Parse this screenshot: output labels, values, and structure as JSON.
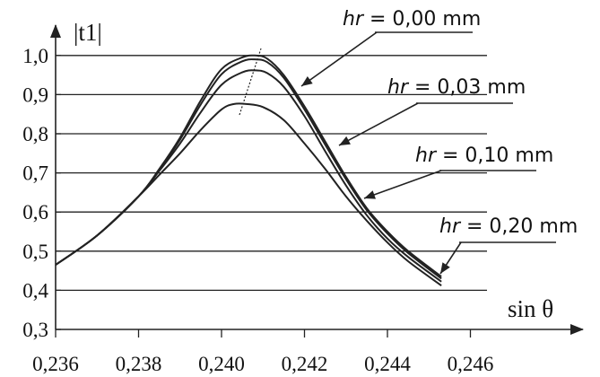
{
  "chart_data": {
    "type": "line",
    "xlabel": "sin θ",
    "ylabel": "|t1|",
    "xlim": [
      0.236,
      0.2475
    ],
    "ylim": [
      0.3,
      1.05
    ],
    "grid": "horizontal",
    "x_ticks": [
      "0,236",
      "0,238",
      "0,240",
      "0,242",
      "0,244",
      "0,246"
    ],
    "y_ticks": [
      "0,3",
      "0,4",
      "0,5",
      "0,6",
      "0,7",
      "0,8",
      "0,9",
      "1,0"
    ],
    "annotations": [
      {
        "param": "hr",
        "text": " = 0,00 mm"
      },
      {
        "param": "hr",
        "text": " = 0,03 mm"
      },
      {
        "param": "hr",
        "text": " = 0,10 mm"
      },
      {
        "param": "hr",
        "text": " = 0,20 mm"
      }
    ],
    "series": [
      {
        "name": "hr = 0,00 mm",
        "x": [
          0.236,
          0.237,
          0.238,
          0.2385,
          0.239,
          0.2395,
          0.24,
          0.2405,
          0.2408,
          0.2411,
          0.2415,
          0.242,
          0.2425,
          0.243,
          0.2435,
          0.244,
          0.2445,
          0.2453
        ],
        "y": [
          0.465,
          0.54,
          0.64,
          0.71,
          0.79,
          0.885,
          0.965,
          0.995,
          1.0,
          0.992,
          0.95,
          0.87,
          0.78,
          0.69,
          0.61,
          0.55,
          0.5,
          0.435
        ]
      },
      {
        "name": "hr = 0,03 mm",
        "x": [
          0.236,
          0.237,
          0.238,
          0.2385,
          0.239,
          0.2395,
          0.24,
          0.2405,
          0.2408,
          0.2411,
          0.2415,
          0.242,
          0.2425,
          0.243,
          0.2435,
          0.244,
          0.2445,
          0.2453
        ],
        "y": [
          0.465,
          0.54,
          0.64,
          0.708,
          0.785,
          0.875,
          0.952,
          0.985,
          0.99,
          0.983,
          0.943,
          0.862,
          0.772,
          0.684,
          0.605,
          0.545,
          0.495,
          0.43
        ]
      },
      {
        "name": "hr = 0,10 mm",
        "x": [
          0.236,
          0.237,
          0.238,
          0.2385,
          0.239,
          0.2395,
          0.24,
          0.2405,
          0.2408,
          0.2411,
          0.2415,
          0.242,
          0.2425,
          0.243,
          0.2435,
          0.244,
          0.2445,
          0.2453
        ],
        "y": [
          0.465,
          0.54,
          0.64,
          0.705,
          0.775,
          0.855,
          0.925,
          0.957,
          0.962,
          0.955,
          0.92,
          0.845,
          0.755,
          0.668,
          0.592,
          0.532,
          0.485,
          0.422
        ]
      },
      {
        "name": "hr = 0,20 mm",
        "x": [
          0.236,
          0.237,
          0.238,
          0.2385,
          0.239,
          0.2395,
          0.24,
          0.2403,
          0.2406,
          0.241,
          0.2415,
          0.242,
          0.2425,
          0.243,
          0.2435,
          0.244,
          0.2445,
          0.2453
        ],
        "y": [
          0.465,
          0.54,
          0.64,
          0.695,
          0.75,
          0.81,
          0.862,
          0.876,
          0.876,
          0.868,
          0.835,
          0.775,
          0.71,
          0.64,
          0.578,
          0.522,
          0.474,
          0.412
        ]
      }
    ]
  }
}
